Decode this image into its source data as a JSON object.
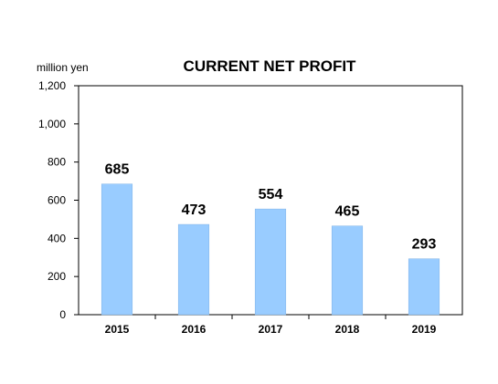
{
  "chart_data": {
    "type": "bar",
    "title": "CURRENT NET PROFIT",
    "unit_label": "million yen",
    "categories": [
      "2015",
      "2016",
      "2017",
      "2018",
      "2019"
    ],
    "values": [
      685,
      473,
      554,
      465,
      293
    ],
    "data_labels": [
      "685",
      "473",
      "554",
      "465",
      "293"
    ],
    "ylim": [
      0,
      1200
    ],
    "yticks": [
      0,
      200,
      400,
      600,
      800,
      1000,
      1200
    ],
    "ytick_labels": [
      "0",
      "200",
      "400",
      "600",
      "800",
      "1,000",
      "1,200"
    ],
    "bar_color": "#99ccff",
    "grid": false,
    "legend": "none"
  }
}
